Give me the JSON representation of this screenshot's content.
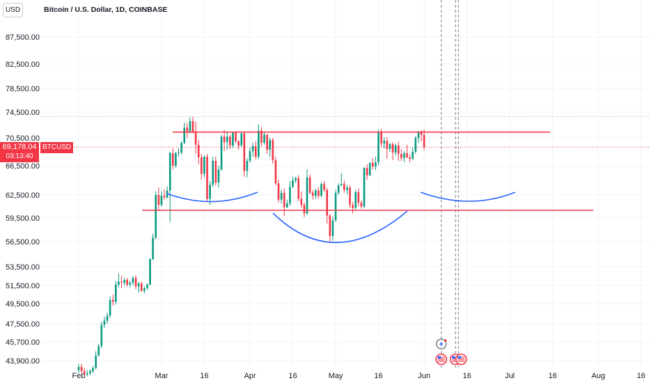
{
  "header": {
    "unit": "USD",
    "title": "Bitcoin / U.S. Dollar, 1D, COINBASE"
  },
  "last_price": {
    "value": "69,178.04",
    "countdown": "03:13:40",
    "symbol": "BTCUSD"
  },
  "colors": {
    "up": "#089981",
    "down": "#f23645",
    "level_line": "#f23645",
    "curve": "#2962ff",
    "grid": "#f0f3fa"
  },
  "icons": [
    "lightning-icon",
    "us-flag-icon",
    "us-flag-icon"
  ],
  "chart_data": {
    "type": "candlestick",
    "title": "Bitcoin / U.S. Dollar, 1D, COINBASE",
    "ylabel": "USD",
    "y_ticks": [
      "87,500.00",
      "82,500.00",
      "78,500.00",
      "74,500.00",
      "70,500.00",
      "66,500.00",
      "62,500.00",
      "59,500.00",
      "56,500.00",
      "53,500.00",
      "51,500.00",
      "49,500.00",
      "47,500.00",
      "45,700.00",
      "43,900.00"
    ],
    "y_tick_values": [
      87500,
      82500,
      78500,
      74500,
      70500,
      66500,
      62500,
      59500,
      56500,
      53500,
      51500,
      49500,
      47500,
      45700,
      43900
    ],
    "x_ticks": [
      "Feb",
      "Mar",
      "16",
      "Apr",
      "16",
      "May",
      "16",
      "Jun",
      "16",
      "Jul",
      "16",
      "Aug",
      "16"
    ],
    "x_tick_dates": [
      "2024-02-01",
      "2024-03-01",
      "2024-03-16",
      "2024-04-01",
      "2024-04-16",
      "2024-05-01",
      "2024-05-16",
      "2024-06-01",
      "2024-06-16",
      "2024-07-01",
      "2024-07-16",
      "2024-08-01",
      "2024-08-16"
    ],
    "last_price": 69178.04,
    "start_date": "2024-02-01",
    "ohlc": [
      [
        43000,
        43600,
        42700,
        43300
      ],
      [
        43300,
        43600,
        42800,
        42900
      ],
      [
        42900,
        43200,
        42500,
        42600
      ],
      [
        42600,
        43000,
        42400,
        42700
      ],
      [
        42700,
        43100,
        42500,
        42900
      ],
      [
        42900,
        43400,
        42700,
        43200
      ],
      [
        43200,
        44800,
        43100,
        44400
      ],
      [
        44400,
        45500,
        44300,
        45300
      ],
      [
        45300,
        47700,
        45100,
        47400
      ],
      [
        47400,
        48200,
        47100,
        47800
      ],
      [
        47800,
        48600,
        47500,
        48300
      ],
      [
        48300,
        50300,
        48100,
        49900
      ],
      [
        49900,
        50500,
        49300,
        49700
      ],
      [
        49700,
        52000,
        49400,
        51600
      ],
      [
        51600,
        52800,
        51300,
        51900
      ],
      [
        51900,
        52500,
        51200,
        51800
      ],
      [
        51800,
        52300,
        51500,
        52100
      ],
      [
        52100,
        52300,
        51400,
        51600
      ],
      [
        51600,
        52000,
        51300,
        51800
      ],
      [
        51800,
        52500,
        51500,
        52300
      ],
      [
        52300,
        52600,
        51100,
        51400
      ],
      [
        51400,
        51900,
        50700,
        51700
      ],
      [
        51700,
        51900,
        50800,
        50900
      ],
      [
        50900,
        51400,
        50600,
        51200
      ],
      [
        51200,
        51700,
        51000,
        51600
      ],
      [
        51600,
        54500,
        51500,
        54400
      ],
      [
        54400,
        57500,
        54300,
        57000
      ],
      [
        57000,
        63000,
        56800,
        62500
      ],
      [
        62500,
        63500,
        60500,
        61200
      ],
      [
        61200,
        63000,
        61000,
        62400
      ],
      [
        62400,
        63300,
        61900,
        62200
      ],
      [
        62200,
        63700,
        62000,
        63100
      ],
      [
        63100,
        68500,
        59000,
        68300
      ],
      [
        68300,
        69000,
        66000,
        66500
      ],
      [
        66500,
        68500,
        66200,
        68300
      ],
      [
        68300,
        69000,
        67800,
        68400
      ],
      [
        68400,
        70000,
        68100,
        69800
      ],
      [
        69800,
        72900,
        69600,
        72100
      ],
      [
        72100,
        72800,
        70500,
        71500
      ],
      [
        71500,
        73700,
        71200,
        73100
      ],
      [
        73100,
        73800,
        71200,
        71400
      ],
      [
        71400,
        73000,
        68200,
        69500
      ],
      [
        69500,
        70200,
        66700,
        67700
      ],
      [
        67700,
        68200,
        64600,
        65400
      ],
      [
        65400,
        68000,
        64900,
        67800
      ],
      [
        67800,
        68200,
        61600,
        62000
      ],
      [
        62000,
        64400,
        61200,
        63900
      ],
      [
        63900,
        67800,
        63600,
        67200
      ],
      [
        67200,
        67800,
        63800,
        64200
      ],
      [
        64200,
        66500,
        63500,
        66000
      ],
      [
        66000,
        71000,
        65800,
        70700
      ],
      [
        70700,
        71700,
        68600,
        69900
      ],
      [
        69900,
        71500,
        68800,
        70700
      ],
      [
        70700,
        71000,
        68900,
        69400
      ],
      [
        69400,
        71400,
        69000,
        71300
      ],
      [
        71300,
        71500,
        69800,
        70000
      ],
      [
        70000,
        70200,
        68800,
        69400
      ],
      [
        69400,
        71300,
        69200,
        71200
      ],
      [
        71200,
        71500,
        65000,
        65800
      ],
      [
        65800,
        67600,
        64900,
        67200
      ],
      [
        67200,
        69100,
        66900,
        68600
      ],
      [
        68600,
        69800,
        67800,
        69300
      ],
      [
        69300,
        70000,
        67400,
        67800
      ],
      [
        67800,
        72600,
        67500,
        71600
      ],
      [
        71600,
        72200,
        69300,
        69800
      ],
      [
        69800,
        71300,
        69500,
        71000
      ],
      [
        71000,
        71100,
        68200,
        68800
      ],
      [
        68800,
        70500,
        67800,
        70200
      ],
      [
        70200,
        70500,
        66800,
        67300
      ],
      [
        67300,
        67800,
        63800,
        64100
      ],
      [
        64100,
        64600,
        61500,
        61900
      ],
      [
        61900,
        63200,
        61400,
        62800
      ],
      [
        62800,
        63400,
        59700,
        60900
      ],
      [
        60900,
        61900,
        60800,
        61400
      ],
      [
        61400,
        64400,
        61100,
        63600
      ],
      [
        63600,
        65000,
        63500,
        64500
      ],
      [
        64500,
        65000,
        64100,
        64800
      ],
      [
        64800,
        65200,
        61700,
        62000
      ],
      [
        62000,
        63000,
        60800,
        61200
      ],
      [
        61200,
        61500,
        59600,
        60100
      ],
      [
        60100,
        66000,
        59900,
        64900
      ],
      [
        64900,
        65300,
        62600,
        62800
      ],
      [
        62800,
        63200,
        61900,
        62400
      ],
      [
        62400,
        63400,
        62000,
        63100
      ],
      [
        63100,
        63500,
        62000,
        62400
      ],
      [
        62400,
        64200,
        62200,
        64000
      ],
      [
        64000,
        64400,
        62900,
        63200
      ],
      [
        63200,
        63500,
        58800,
        59800
      ],
      [
        59800,
        60000,
        56500,
        57200
      ],
      [
        57200,
        59700,
        56600,
        59200
      ],
      [
        59200,
        63200,
        59000,
        62800
      ],
      [
        62800,
        64100,
        62500,
        63800
      ],
      [
        63800,
        65500,
        63700,
        64000
      ],
      [
        64000,
        64500,
        62800,
        63200
      ],
      [
        63200,
        63900,
        62600,
        63500
      ],
      [
        63500,
        63800,
        60800,
        61200
      ],
      [
        61200,
        61600,
        60100,
        60800
      ],
      [
        60800,
        63200,
        60600,
        62900
      ],
      [
        62900,
        63400,
        61000,
        61500
      ],
      [
        61500,
        61800,
        60700,
        61000
      ],
      [
        61000,
        66300,
        60800,
        66200
      ],
      [
        66200,
        66700,
        64600,
        65200
      ],
      [
        65200,
        67000,
        65100,
        66900
      ],
      [
        66900,
        67600,
        66000,
        66400
      ],
      [
        66400,
        67800,
        65900,
        67000
      ],
      [
        67000,
        71800,
        66600,
        71400
      ],
      [
        71400,
        71900,
        69200,
        69700
      ],
      [
        69700,
        70600,
        69000,
        70100
      ],
      [
        70100,
        70600,
        67500,
        68900
      ],
      [
        68900,
        69800,
        68500,
        69600
      ],
      [
        69600,
        69900,
        67300,
        68400
      ],
      [
        68400,
        69700,
        68000,
        69400
      ],
      [
        69400,
        70000,
        67200,
        68200
      ],
      [
        68200,
        68900,
        67200,
        67600
      ],
      [
        67600,
        68600,
        67000,
        68300
      ],
      [
        68300,
        69500,
        67600,
        67700
      ],
      [
        67700,
        68100,
        67000,
        67500
      ],
      [
        67500,
        69200,
        67300,
        68500
      ],
      [
        68500,
        70800,
        68200,
        70500
      ],
      [
        70500,
        71600,
        69800,
        71300
      ],
      [
        71300,
        71700,
        70000,
        71000
      ],
      [
        71000,
        71800,
        68700,
        69200
      ]
    ],
    "annotations": {
      "resistance_line": 71400,
      "support_line": 60500,
      "curves": [
        "left-shoulder",
        "head",
        "right-shoulder"
      ]
    }
  }
}
